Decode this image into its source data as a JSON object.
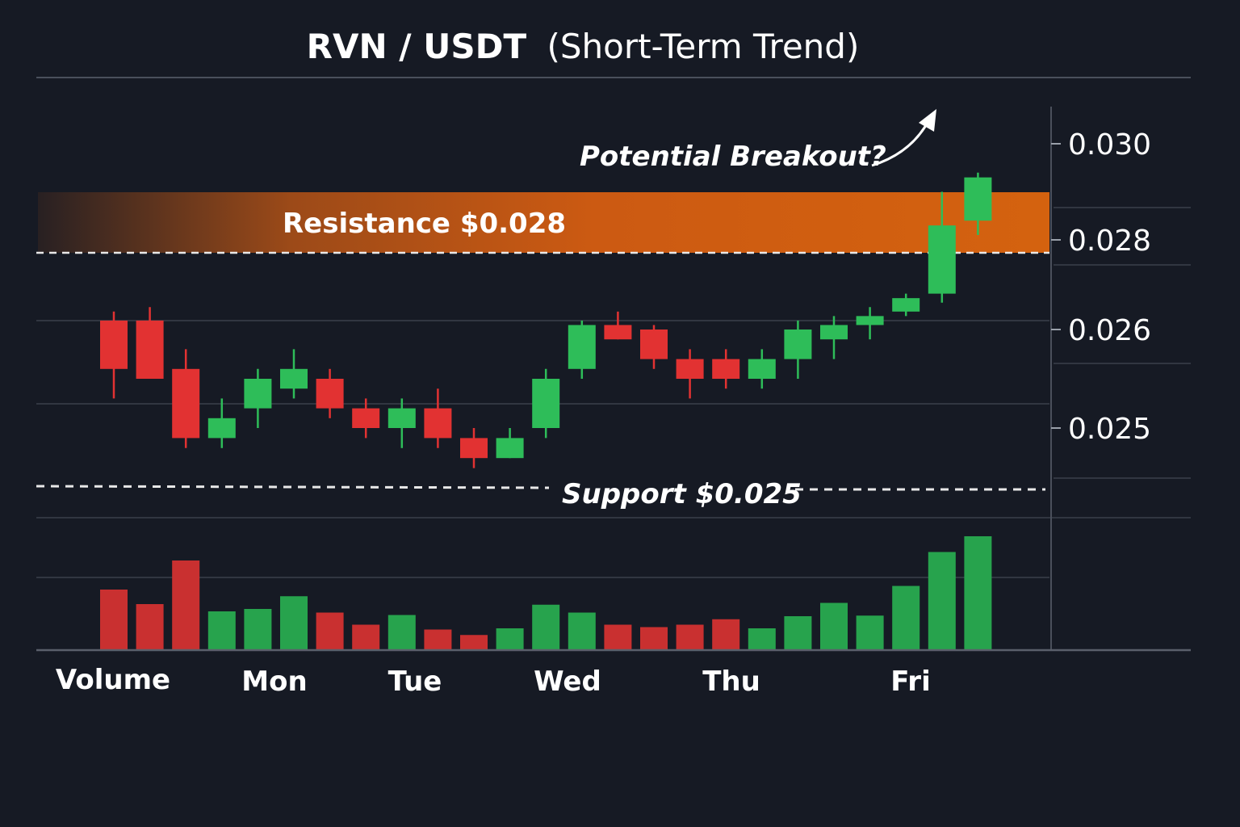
{
  "chart_data": {
    "type": "candlestick",
    "title_main": "RVN / USDT",
    "title_sub": "(Short-Term Trend)",
    "y_ticks": [
      "0.030",
      "0.028",
      "0.026",
      "0.025"
    ],
    "x_labels": [
      "Volume",
      "Mon",
      "Tue",
      "Wed",
      "Thu",
      "Fri"
    ],
    "annotations": {
      "resistance": "Resistance $0.028",
      "support": "Support $0.025",
      "breakout": "Potential Breakout?"
    },
    "levels": {
      "resistance": 0.028,
      "support": 0.025
    },
    "colors": {
      "up": "#2ebd59",
      "down": "#e23232",
      "resistance_band": "#c95a14",
      "background": "#161a24"
    },
    "candles": [
      {
        "day": "Mon",
        "open": 0.0262,
        "close": 0.0256,
        "high": 0.0264,
        "low": 0.0253,
        "volume": 1.0
      },
      {
        "day": "Mon",
        "open": 0.0262,
        "close": 0.0255,
        "high": 0.0265,
        "low": 0.0255,
        "volume": 0.76
      },
      {
        "day": "Mon",
        "open": 0.0256,
        "close": 0.0249,
        "high": 0.0258,
        "low": 0.0248,
        "volume": 1.48
      },
      {
        "day": "Mon",
        "open": 0.0249,
        "close": 0.0251,
        "high": 0.0253,
        "low": 0.0248,
        "volume": 0.64
      },
      {
        "day": "Tue",
        "open": 0.0252,
        "close": 0.0255,
        "high": 0.0256,
        "low": 0.025,
        "volume": 0.68
      },
      {
        "day": "Tue",
        "open": 0.0254,
        "close": 0.0256,
        "high": 0.0258,
        "low": 0.0253,
        "volume": 0.89
      },
      {
        "day": "Tue",
        "open": 0.0255,
        "close": 0.0252,
        "high": 0.0256,
        "low": 0.0251,
        "volume": 0.62
      },
      {
        "day": "Tue",
        "open": 0.0252,
        "close": 0.025,
        "high": 0.0253,
        "low": 0.0249,
        "volume": 0.42
      },
      {
        "day": "Tue",
        "open": 0.025,
        "close": 0.0252,
        "high": 0.0253,
        "low": 0.0248,
        "volume": 0.58
      },
      {
        "day": "Tue",
        "open": 0.0252,
        "close": 0.0249,
        "high": 0.0254,
        "low": 0.0248,
        "volume": 0.34
      },
      {
        "day": "Wed",
        "open": 0.0249,
        "close": 0.0247,
        "high": 0.025,
        "low": 0.0246,
        "volume": 0.25
      },
      {
        "day": "Wed",
        "open": 0.0247,
        "close": 0.0249,
        "high": 0.025,
        "low": 0.0247,
        "volume": 0.36
      },
      {
        "day": "Wed",
        "open": 0.025,
        "close": 0.0255,
        "high": 0.0256,
        "low": 0.0249,
        "volume": 0.75
      },
      {
        "day": "Wed",
        "open": 0.0256,
        "close": 0.0261,
        "high": 0.0262,
        "low": 0.0255,
        "volume": 0.62
      },
      {
        "day": "Thu",
        "open": 0.0261,
        "close": 0.0259,
        "high": 0.0264,
        "low": 0.0259,
        "volume": 0.42
      },
      {
        "day": "Thu",
        "open": 0.026,
        "close": 0.0257,
        "high": 0.0261,
        "low": 0.0256,
        "volume": 0.38
      },
      {
        "day": "Thu",
        "open": 0.0257,
        "close": 0.0255,
        "high": 0.0258,
        "low": 0.0253,
        "volume": 0.42
      },
      {
        "day": "Thu",
        "open": 0.0257,
        "close": 0.0255,
        "high": 0.0258,
        "low": 0.0254,
        "volume": 0.51
      },
      {
        "day": "Thu",
        "open": 0.0255,
        "close": 0.0257,
        "high": 0.0258,
        "low": 0.0254,
        "volume": 0.36
      },
      {
        "day": "Thu",
        "open": 0.0257,
        "close": 0.026,
        "high": 0.0262,
        "low": 0.0255,
        "volume": 0.56
      },
      {
        "day": "Fri",
        "open": 0.0259,
        "close": 0.0261,
        "high": 0.0263,
        "low": 0.0257,
        "volume": 0.78
      },
      {
        "day": "Fri",
        "open": 0.0261,
        "close": 0.0263,
        "high": 0.0265,
        "low": 0.0259,
        "volume": 0.57
      },
      {
        "day": "Fri",
        "open": 0.0264,
        "close": 0.0267,
        "high": 0.0268,
        "low": 0.0263,
        "volume": 1.06
      },
      {
        "day": "Fri",
        "open": 0.0268,
        "close": 0.0283,
        "high": 0.029,
        "low": 0.0266,
        "volume": 1.62
      },
      {
        "day": "Fri",
        "open": 0.0284,
        "close": 0.0293,
        "high": 0.0294,
        "low": 0.0281,
        "volume": 1.88
      }
    ]
  }
}
